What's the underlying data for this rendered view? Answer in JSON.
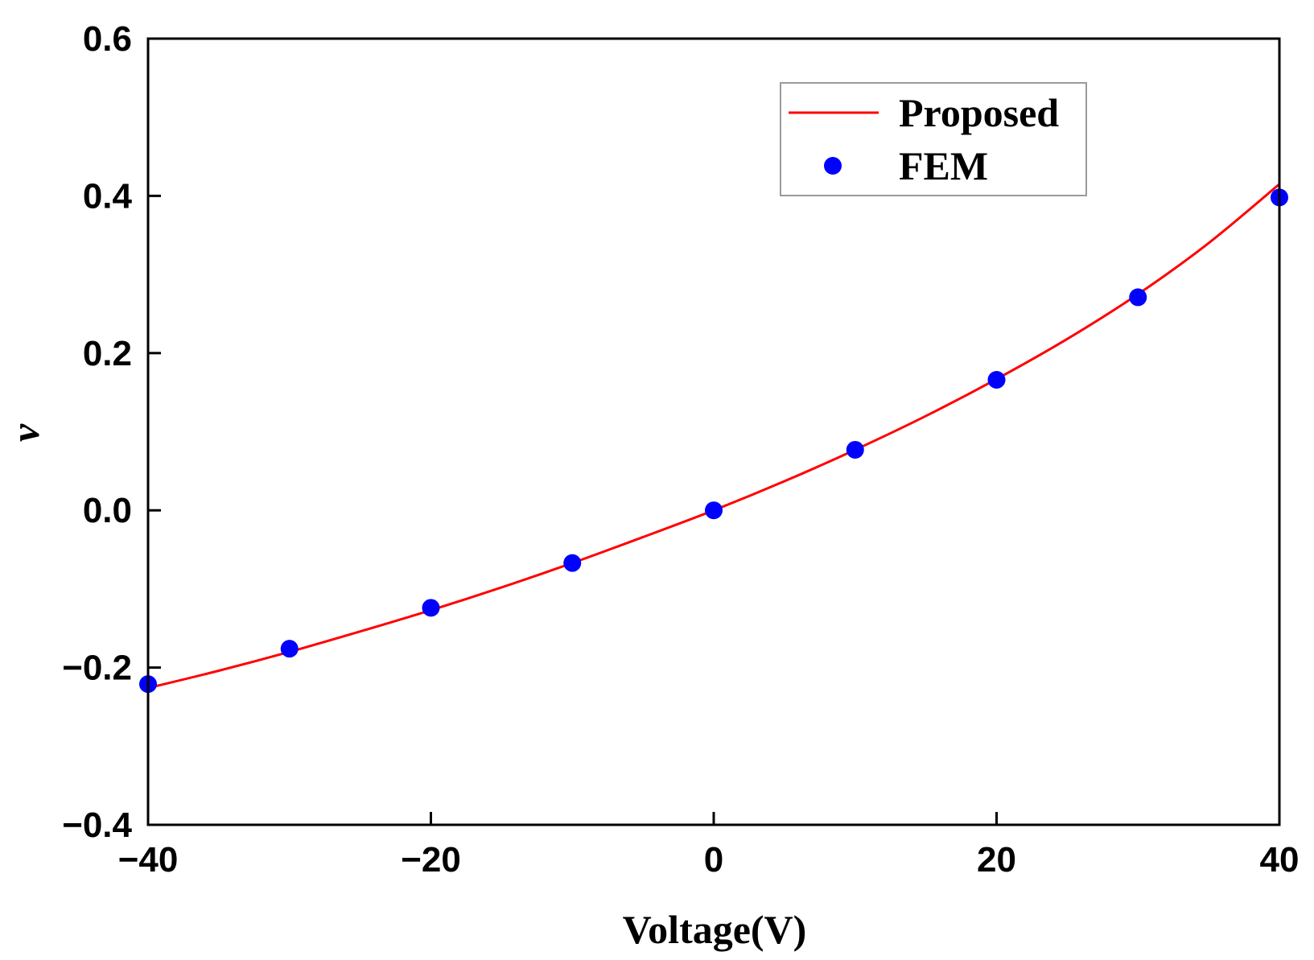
{
  "chart_data": {
    "type": "line",
    "title": "",
    "xlabel": "Voltage(V)",
    "ylabel": "v",
    "xlim": [
      -40,
      40
    ],
    "ylim": [
      -0.4,
      0.6
    ],
    "x_ticks": [
      -40,
      -20,
      0,
      20,
      40
    ],
    "x_tick_labels": [
      "−40",
      "−20",
      "0",
      "20",
      "40"
    ],
    "y_ticks": [
      -0.4,
      -0.2,
      0.0,
      0.2,
      0.4,
      0.6
    ],
    "y_tick_labels": [
      "−0.4",
      "−0.2",
      "0.0",
      "0.2",
      "0.4",
      "0.6"
    ],
    "legend_position": "top-right",
    "series": [
      {
        "name": "Proposed",
        "kind": "line",
        "color": "#ff0000",
        "x": [
          -40,
          -35,
          -30,
          -25,
          -20,
          -15,
          -10,
          -5,
          0,
          5,
          10,
          15,
          20,
          25,
          30,
          35,
          40
        ],
        "y": [
          -0.226,
          -0.204,
          -0.18,
          -0.154,
          -0.127,
          -0.098,
          -0.067,
          -0.034,
          0.0,
          0.037,
          0.077,
          0.12,
          0.167,
          0.218,
          0.275,
          0.34,
          0.415
        ]
      },
      {
        "name": "FEM",
        "kind": "scatter",
        "color": "#0000ff",
        "x": [
          -40,
          -30,
          -20,
          -10,
          0,
          10,
          20,
          30,
          40
        ],
        "y": [
          -0.221,
          -0.176,
          -0.124,
          -0.067,
          0.0,
          0.077,
          0.166,
          0.271,
          0.398
        ]
      }
    ]
  }
}
